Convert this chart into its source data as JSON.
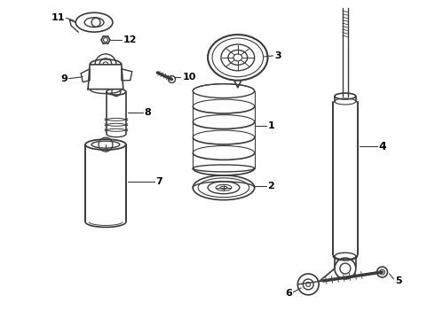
{
  "bg": "#ffffff",
  "lc": "#3a3a3a",
  "tc": "#000000",
  "fig_w": 4.9,
  "fig_h": 3.6,
  "dpi": 100
}
